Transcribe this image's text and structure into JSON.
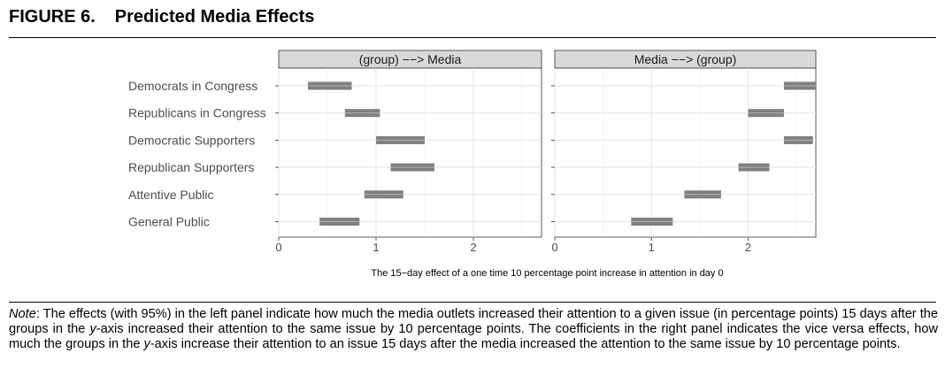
{
  "figure": {
    "label": "FIGURE 6.",
    "title": "Predicted Media Effects"
  },
  "note": {
    "lead": "Note",
    "segments": [
      ": The effects (with 95%) in the left panel indicate how much the media outlets increased their attention to a given issue (in percentage points) 15 days after the groups in the ",
      "y",
      "-axis increased their attention to the same issue by 10 percentage points. The coefficients in the right panel indicates the vice versa effects, how much the groups in the ",
      "y",
      "-axis increase their attention to an issue 15 days after the media increased the attention to the same issue by 10 percentage points."
    ]
  },
  "chart_data": {
    "type": "interval",
    "xlabel": "The 15−day effect of a one time 10 percentage point increase in attention in day 0",
    "categories": [
      "Democrats in Congress",
      "Republicans in Congress",
      "Democratic Supporters",
      "Republican Supporters",
      "Attentive Public",
      "General Public"
    ],
    "grid": true,
    "color": "#808080",
    "panels": [
      {
        "title": "(group) −−> Media",
        "xlim": [
          0,
          2.7
        ],
        "xticks": [
          "0",
          "1",
          "2"
        ],
        "intervals": [
          {
            "category": "Democrats in Congress",
            "low": 0.3,
            "high": 0.75
          },
          {
            "category": "Republicans in Congress",
            "low": 0.68,
            "high": 1.04
          },
          {
            "category": "Democratic Supporters",
            "low": 1.0,
            "high": 1.5
          },
          {
            "category": "Republican Supporters",
            "low": 1.15,
            "high": 1.6
          },
          {
            "category": "Attentive Public",
            "low": 0.88,
            "high": 1.28
          },
          {
            "category": "General Public",
            "low": 0.42,
            "high": 0.83
          }
        ]
      },
      {
        "title": "Media −−> (group)",
        "xlim": [
          0,
          2.7
        ],
        "xticks": [
          "0",
          "1",
          "2"
        ],
        "intervals": [
          {
            "category": "Democrats in Congress",
            "low": 2.37,
            "high": 2.7
          },
          {
            "category": "Republicans in Congress",
            "low": 2.0,
            "high": 2.37
          },
          {
            "category": "Democratic Supporters",
            "low": 2.37,
            "high": 2.67
          },
          {
            "category": "Republican Supporters",
            "low": 1.9,
            "high": 2.22
          },
          {
            "category": "Attentive Public",
            "low": 1.34,
            "high": 1.72
          },
          {
            "category": "General Public",
            "low": 0.79,
            "high": 1.22
          }
        ]
      }
    ]
  }
}
